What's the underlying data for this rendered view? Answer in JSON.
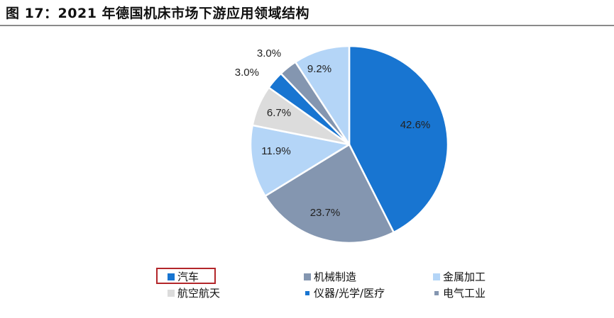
{
  "title": "图 17：2021 年德国机床市场下游应用领域结构",
  "chart_data": {
    "type": "pie",
    "title": "",
    "legend_position": "bottom",
    "slices": [
      {
        "name": "汽车",
        "value": 42.6,
        "label": "42.6%",
        "color": "#1875d1"
      },
      {
        "name": "机械制造",
        "value": 23.7,
        "label": "23.7%",
        "color": "#8496b0"
      },
      {
        "name": "金属加工",
        "value": 11.9,
        "label": "11.9%",
        "color": "#b4d5f7"
      },
      {
        "name": "航空航天",
        "value": 6.7,
        "label": "6.7%",
        "color": "#dcdcdc"
      },
      {
        "name": "仪器/光学/医疗",
        "value": 3.0,
        "label": "3.0%",
        "color": "#1875d1"
      },
      {
        "name": "电气工业",
        "value": 3.0,
        "label": "3.0%",
        "color": "#8496b0"
      },
      {
        "name": "",
        "value": 9.2,
        "label": "9.2%",
        "color": "#b4d5f7"
      }
    ],
    "highlighted_legend_entry": "汽车"
  }
}
